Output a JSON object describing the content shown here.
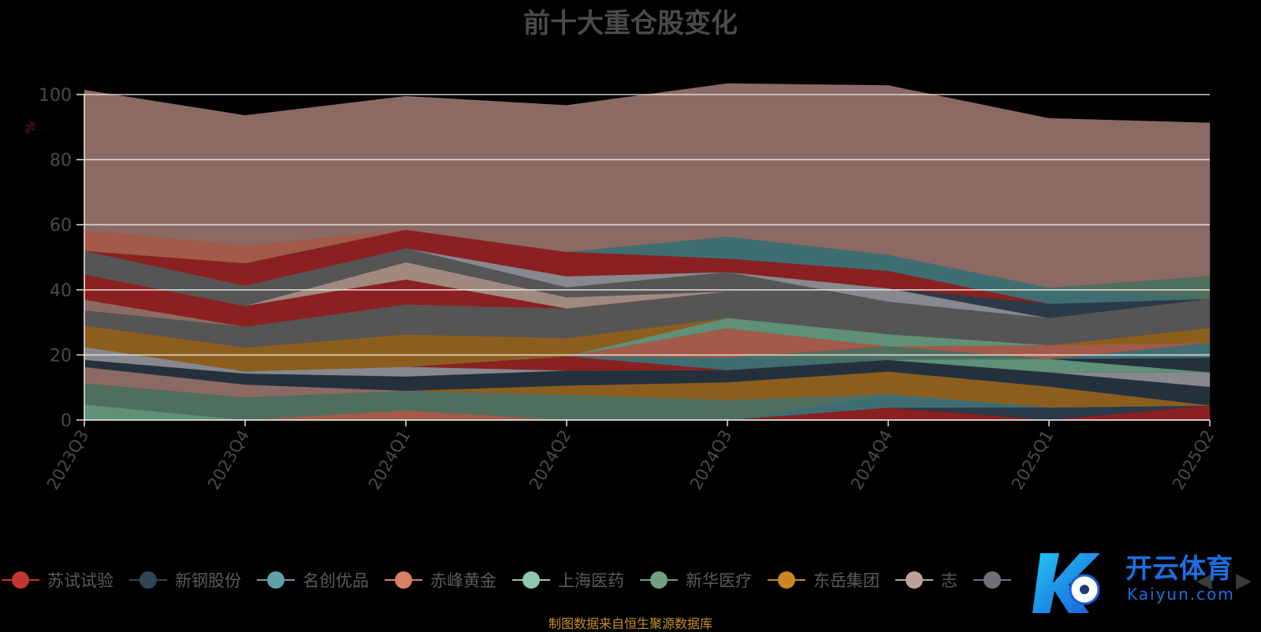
{
  "chart_data": {
    "type": "area",
    "stacked": true,
    "title": "前十大重仓股变化",
    "ylabel": "%",
    "ylim": [
      0,
      100
    ],
    "yticks": [
      0,
      20,
      40,
      60,
      80,
      100
    ],
    "grid": true,
    "legend_position": "bottom",
    "categories": [
      "2023Q3",
      "2023Q4",
      "2024Q1",
      "2024Q2",
      "2024Q3",
      "2024Q4",
      "2025Q1",
      "2025Q2"
    ],
    "series": [
      {
        "name": "苏试试验",
        "color": "#8b2020",
        "values": [
          0,
          0,
          0,
          0,
          0,
          3.8,
          0,
          4.5
        ]
      },
      {
        "name": "新钢股份",
        "color": "#2b3a48",
        "values": [
          0,
          0,
          0,
          0,
          0,
          0,
          3.9,
          0
        ]
      },
      {
        "name": "名创优品",
        "color": "#3f6e72",
        "values": [
          0,
          0,
          0,
          0,
          0,
          4.2,
          0,
          0
        ]
      },
      {
        "name": "赤峰黄金",
        "color": "#a35a48",
        "values": [
          0,
          0,
          3,
          0,
          0,
          0,
          0,
          0
        ]
      },
      {
        "name": "上海医药",
        "color": "#5f9078",
        "values": [
          4.8,
          0,
          0,
          0,
          0,
          0,
          0,
          0
        ]
      },
      {
        "name": "新华医疗",
        "color": "#4f6e5e",
        "values": [
          6.5,
          7,
          6,
          7.7,
          6.2,
          0,
          0,
          0
        ]
      },
      {
        "name": "东岳集团",
        "color": "#8c5e1e",
        "values": [
          0,
          0,
          0,
          2.9,
          5.4,
          6.9,
          6.4,
          0
        ]
      },
      {
        "name": "志",
        "color": "#8b6a64",
        "values": [
          5,
          3.9,
          0,
          0,
          0,
          0,
          0,
          0
        ]
      },
      {
        "name": "",
        "color": "#24313d",
        "values": [
          2.2,
          3.4,
          4.4,
          4.6,
          3.8,
          3.6,
          4.4,
          5.7
        ]
      },
      {
        "name": "",
        "color": "#88888f",
        "values": [
          4,
          0.7,
          3,
          0,
          0,
          0,
          0,
          4.5
        ]
      },
      {
        "name": "",
        "color": "#8b2020",
        "values": [
          0,
          0,
          0,
          4.4,
          0,
          0,
          0,
          0
        ]
      },
      {
        "name": "",
        "color": "#3f6e72",
        "values": [
          0,
          0,
          0,
          0,
          3.8,
          0,
          0,
          0
        ]
      },
      {
        "name": "",
        "color": "#5f9078",
        "values": [
          0,
          0,
          0,
          0,
          0,
          0,
          4.1,
          0
        ]
      },
      {
        "name": "",
        "color": "#4f6e5e",
        "values": [
          0,
          0,
          0,
          0,
          0,
          4.1,
          0,
          0
        ]
      },
      {
        "name": "",
        "color": "#24313d",
        "values": [
          0,
          0,
          0,
          0,
          0,
          0,
          0,
          4.5
        ]
      },
      {
        "name": "",
        "color": "#3f6e72",
        "values": [
          0,
          0,
          0,
          0,
          0,
          0,
          0,
          4.5
        ]
      },
      {
        "name": "",
        "color": "#a35a48",
        "values": [
          0,
          0,
          0,
          0,
          9,
          0,
          4.2,
          0
        ]
      },
      {
        "name": "",
        "color": "#5f9078",
        "values": [
          0,
          0,
          0,
          0,
          3.2,
          3.8,
          0,
          0
        ]
      },
      {
        "name": "",
        "color": "#8c5e1e",
        "values": [
          6.6,
          7.3,
          9.9,
          5.6,
          0,
          0,
          0,
          4.6
        ]
      },
      {
        "name": "",
        "color": "#555555",
        "values": [
          4.6,
          6.4,
          9.2,
          9.1,
          8.1,
          6.4,
          8.3,
          8.9
        ]
      },
      {
        "name": "",
        "color": "#8b6a64",
        "values": [
          3.3,
          0,
          0,
          0,
          0,
          0,
          0,
          0
        ]
      },
      {
        "name": "",
        "color": "#8b2020",
        "values": [
          7.8,
          6.4,
          7.7,
          0,
          0,
          0,
          0,
          0
        ]
      },
      {
        "name": "",
        "color": "#a08a80",
        "values": [
          0,
          0,
          5.3,
          3.4,
          0,
          0,
          0,
          0
        ]
      },
      {
        "name": "",
        "color": "#555555",
        "values": [
          7.2,
          6.2,
          4.3,
          3.1,
          6,
          3.6,
          0,
          0
        ]
      },
      {
        "name": "",
        "color": "#88888f",
        "values": [
          0,
          0,
          0,
          3.4,
          0,
          4.1,
          0,
          0
        ]
      },
      {
        "name": "",
        "color": "#a35a48",
        "values": [
          0,
          0,
          0,
          0,
          0,
          0,
          0,
          0
        ]
      },
      {
        "name": "",
        "color": "#2b3a48",
        "values": [
          0,
          0,
          0,
          0,
          0,
          0,
          4.4,
          0
        ]
      },
      {
        "name": "",
        "color": "#8b2020",
        "values": [
          0,
          6.9,
          5.7,
          7.5,
          4.1,
          5.3,
          0,
          0
        ]
      },
      {
        "name": "",
        "color": "#3f6e72",
        "values": [
          0,
          0,
          0,
          0,
          6.8,
          5,
          5,
          0
        ]
      },
      {
        "name": "",
        "color": "#4f6e5e",
        "values": [
          0,
          0,
          0,
          0,
          0,
          0,
          0,
          7.1
        ]
      },
      {
        "name": "",
        "color": "#a35a48",
        "values": [
          6.4,
          5.4,
          0,
          0,
          0,
          0,
          0,
          0
        ]
      },
      {
        "name": "",
        "color": "#8b6a64",
        "values": [
          43,
          40,
          41,
          45,
          47,
          52,
          52,
          47
        ]
      }
    ]
  },
  "legend_items": [
    {
      "name": "苏试试验",
      "color": "#c23531"
    },
    {
      "name": "新钢股份",
      "color": "#2f4554"
    },
    {
      "name": "名创优品",
      "color": "#61a0a8"
    },
    {
      "name": "赤峰黄金",
      "color": "#d48265"
    },
    {
      "name": "上海医药",
      "color": "#91c7ae"
    },
    {
      "name": "新华医疗",
      "color": "#749f83"
    },
    {
      "name": "东岳集团",
      "color": "#ca8622"
    },
    {
      "name": "志",
      "color": "#bda29a"
    },
    {
      "name": "",
      "color": "#6e7074"
    }
  ],
  "footer": {
    "note": "制图数据来自恒生聚源数据库",
    "color": "#c8902a"
  },
  "watermark": {
    "text": "开云体育",
    "sub": "Kaiyun.com"
  },
  "colors": {
    "axis_label": "#7a1818",
    "grid": "#e8e2dc",
    "tick": "#4a4a4a"
  }
}
